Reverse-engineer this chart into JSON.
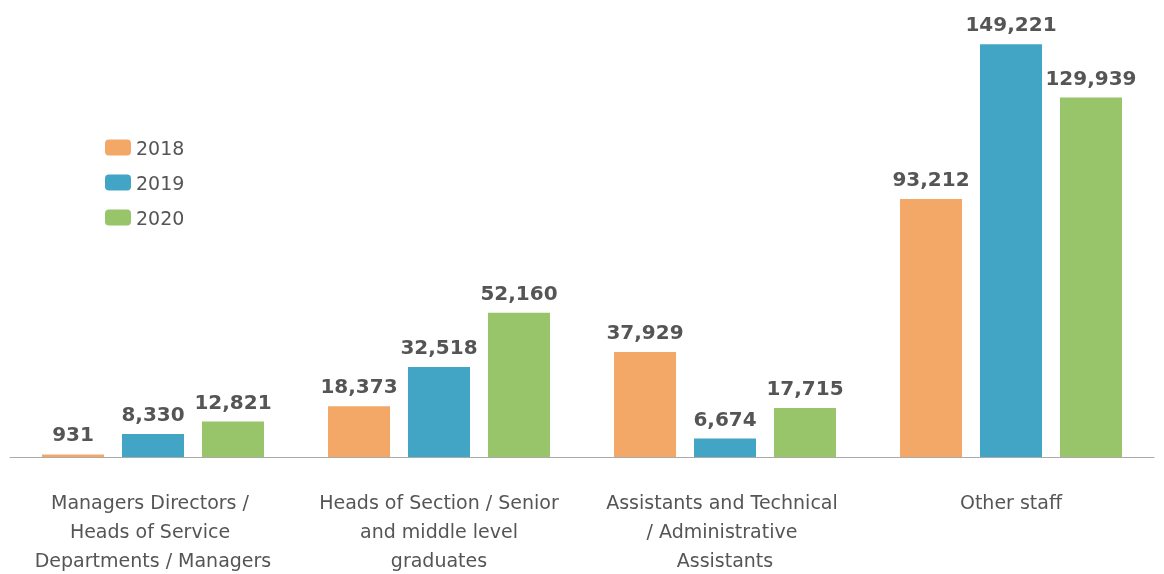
{
  "chart_data": {
    "type": "bar",
    "categories": [
      "Managers Directors / Heads of Service Departments / Managers",
      "Heads of Section / Senior and middle level graduates",
      "Assistants and Technical / Administrative Assistants",
      "Other staff"
    ],
    "series": [
      {
        "name": "2018",
        "color": "#f4a867",
        "values": [
          931,
          18373,
          37929,
          93212
        ],
        "value_labels": [
          "931",
          "18,373",
          "37,929",
          "93,212"
        ]
      },
      {
        "name": "2019",
        "color": "#42a5c5",
        "values": [
          8330,
          32518,
          6674,
          149221
        ],
        "value_labels": [
          "8,330",
          "32,518",
          "6,674",
          "149,221"
        ]
      },
      {
        "name": "2020",
        "color": "#98c46a",
        "values": [
          12821,
          52160,
          17715,
          129939
        ],
        "value_labels": [
          "12,821",
          "52,160",
          "17,715",
          "129,939"
        ]
      }
    ],
    "legend": "top left"
  }
}
